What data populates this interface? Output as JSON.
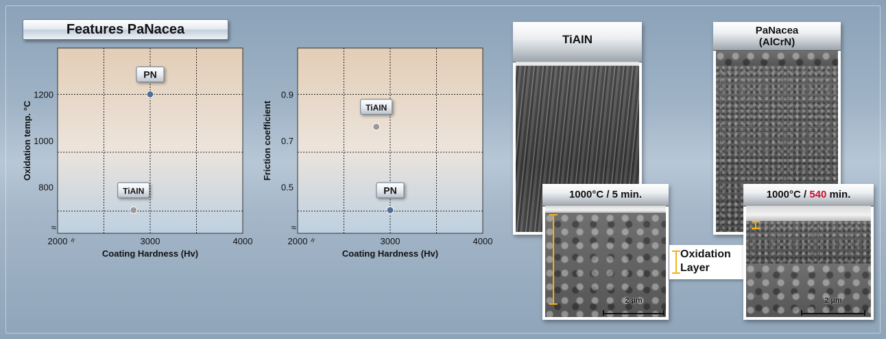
{
  "title": "Features PaNacea",
  "chart_data": [
    {
      "type": "scatter",
      "xlabel": "Coating Hardness (Hv)",
      "ylabel": "Oxidation temp. °C",
      "xlim": [
        2000,
        4000
      ],
      "ylim": [
        600,
        1400
      ],
      "x_ticks": [
        2000,
        3000,
        4000
      ],
      "y_ticks": [
        800,
        1000,
        1200
      ],
      "points": [
        {
          "name": "PN",
          "x": 3000,
          "y": 1200,
          "color": "#4e6e93"
        },
        {
          "name": "TiAIN",
          "x": 2820,
          "y": 700,
          "color": "#9a9a9a"
        }
      ],
      "axis_break": "≈"
    },
    {
      "type": "scatter",
      "xlabel": "Coating Hardness (Hv)",
      "ylabel": "Friction coefficient",
      "xlim": [
        2000,
        4000
      ],
      "ylim": [
        0.3,
        1.1
      ],
      "x_ticks": [
        2000,
        3000,
        4000
      ],
      "y_ticks": [
        0.5,
        0.7,
        0.9
      ],
      "points": [
        {
          "name": "TiAIN",
          "x": 2850,
          "y": 0.76,
          "color": "#9a9a9a"
        },
        {
          "name": "PN",
          "x": 3000,
          "y": 0.4,
          "color": "#4e6e93"
        }
      ],
      "axis_break": "≈"
    }
  ],
  "images": {
    "tiain": {
      "header": "TiAIN",
      "inset_title": "1000°C / 5 min.",
      "scale": "2 µm"
    },
    "panacea": {
      "header_line1": "PaNacea",
      "header_line2": "(AlCrN)",
      "inset_title_pre": "1000°C / ",
      "inset_title_highlight": "540",
      "inset_title_post": " min.",
      "scale": "2 µm"
    },
    "oxidation_label_line1": "Oxidation",
    "oxidation_label_line2": "Layer",
    "colors": {
      "bracket": "#f2b11b",
      "highlight": "#c8102e"
    }
  }
}
